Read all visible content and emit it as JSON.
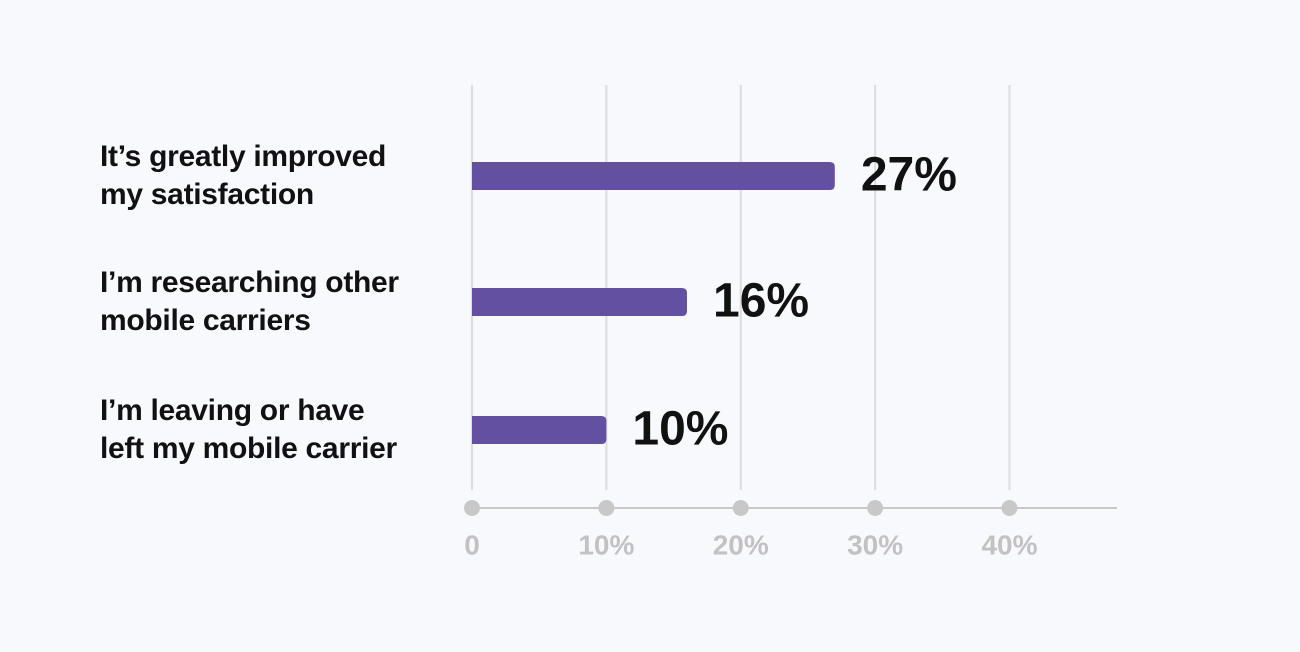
{
  "chart_data": {
    "type": "bar",
    "orientation": "horizontal",
    "categories": [
      "It’s greatly improved\nmy satisfaction",
      "I’m researching other\nmobile carriers",
      "I’m leaving or have\nleft my mobile carrier"
    ],
    "values": [
      27,
      16,
      10
    ],
    "value_labels": [
      "27%",
      "16%",
      "10%"
    ],
    "color": "#6450a0",
    "xlim": [
      0,
      48
    ],
    "xticks": [
      0,
      {
        "value": 10,
        "label": "10%"
      },
      {
        "value": 20,
        "label": "20%"
      },
      {
        "value": 30,
        "label": "30%"
      },
      {
        "value": 40,
        "label": "40%"
      }
    ],
    "grid": true
  }
}
